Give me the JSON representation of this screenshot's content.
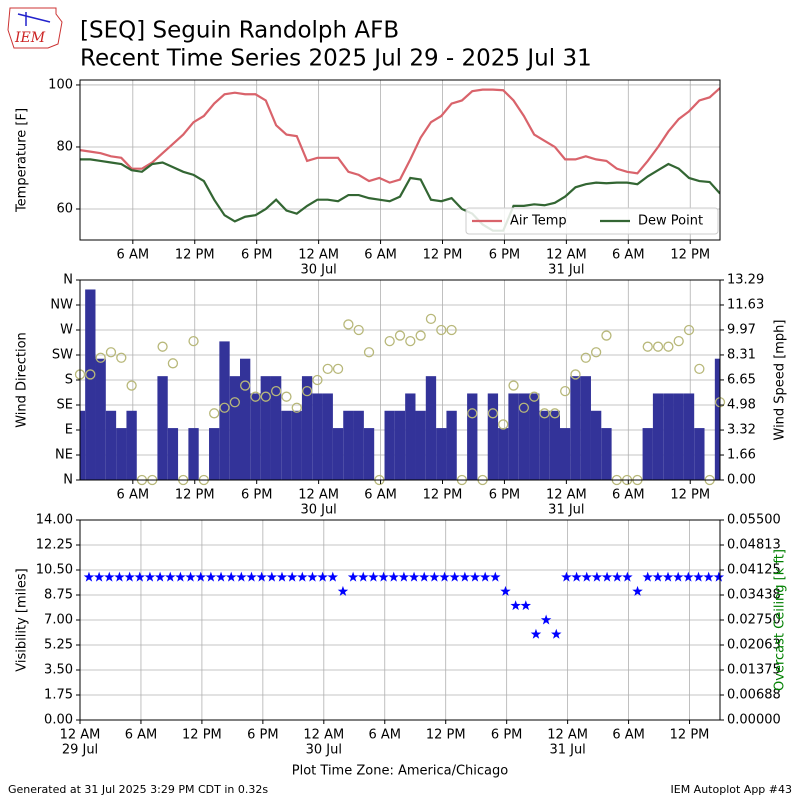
{
  "header": {
    "logo": "IEM",
    "title": "[SEQ] Seguin Randolph AFB",
    "subtitle": "Recent Time Series 2025 Jul 29 - 2025 Jul 31"
  },
  "chart_data": [
    {
      "type": "line",
      "ylabel": "Temperature [F]",
      "grid": true,
      "legend": "lower right",
      "xlim": [
        "2025-07-29T00:53",
        "2025-07-31T14:53"
      ],
      "ylim": [
        50,
        101.6
      ],
      "yticks": [
        60,
        80,
        100
      ],
      "xticks": [
        {
          "value": "2025-07-29T06:00",
          "label": "6 AM"
        },
        {
          "value": "2025-07-29T12:00",
          "label": "12 PM"
        },
        {
          "value": "2025-07-29T18:00",
          "label": "6 PM"
        },
        {
          "value": "2025-07-30T00:00",
          "label": "12 AM"
        },
        {
          "value": "2025-07-30T06:00",
          "label": "6 AM"
        },
        {
          "value": "2025-07-30T12:00",
          "label": "12 PM"
        },
        {
          "value": "2025-07-30T18:00",
          "label": "6 PM"
        },
        {
          "value": "2025-07-31T00:00",
          "label": "12 AM"
        },
        {
          "value": "2025-07-31T06:00",
          "label": "6 AM"
        },
        {
          "value": "2025-07-31T12:00",
          "label": "12 PM"
        }
      ],
      "xdate_labels": [
        {
          "value": "2025-07-30T00:00",
          "label": "30 Jul"
        },
        {
          "value": "2025-07-31T00:00",
          "label": "31 Jul"
        }
      ],
      "x": [
        "2025-07-29T00:53",
        "2025-07-29T01:53",
        "2025-07-29T02:53",
        "2025-07-29T03:53",
        "2025-07-29T04:53",
        "2025-07-29T05:53",
        "2025-07-29T06:53",
        "2025-07-29T07:53",
        "2025-07-29T08:53",
        "2025-07-29T09:53",
        "2025-07-29T10:53",
        "2025-07-29T11:53",
        "2025-07-29T12:53",
        "2025-07-29T13:53",
        "2025-07-29T14:53",
        "2025-07-29T15:53",
        "2025-07-29T16:53",
        "2025-07-29T17:53",
        "2025-07-29T18:53",
        "2025-07-29T19:53",
        "2025-07-29T20:53",
        "2025-07-29T21:53",
        "2025-07-29T22:53",
        "2025-07-29T23:53",
        "2025-07-30T00:53",
        "2025-07-30T01:53",
        "2025-07-30T02:53",
        "2025-07-30T03:53",
        "2025-07-30T04:53",
        "2025-07-30T05:53",
        "2025-07-30T06:53",
        "2025-07-30T07:53",
        "2025-07-30T08:53",
        "2025-07-30T09:53",
        "2025-07-30T10:53",
        "2025-07-30T11:53",
        "2025-07-30T12:53",
        "2025-07-30T13:53",
        "2025-07-30T14:53",
        "2025-07-30T15:53",
        "2025-07-30T16:53",
        "2025-07-30T17:53",
        "2025-07-30T18:53",
        "2025-07-30T19:53",
        "2025-07-30T20:53",
        "2025-07-30T21:53",
        "2025-07-30T22:53",
        "2025-07-30T23:53",
        "2025-07-31T00:53",
        "2025-07-31T01:53",
        "2025-07-31T02:53",
        "2025-07-31T03:53",
        "2025-07-31T04:53",
        "2025-07-31T05:53",
        "2025-07-31T06:53",
        "2025-07-31T07:53",
        "2025-07-31T08:53",
        "2025-07-31T09:53",
        "2025-07-31T10:53",
        "2025-07-31T11:53",
        "2025-07-31T12:53",
        "2025-07-31T13:53",
        "2025-07-31T14:53"
      ],
      "series": [
        {
          "name": "Air Temp",
          "kind": "line",
          "color": "#d9636b",
          "values": [
            79,
            78.5,
            78,
            77,
            76.5,
            73,
            73,
            75,
            78,
            81,
            84,
            88,
            90,
            94,
            97,
            97.5,
            97,
            97,
            95,
            87,
            84,
            83.5,
            75.5,
            76.5,
            76.5,
            76.5,
            72,
            71,
            69,
            70,
            68.5,
            69.5,
            76,
            83,
            88,
            90,
            94,
            95,
            98,
            98.5,
            98.5,
            98.3,
            95,
            90,
            84,
            82,
            80,
            76,
            76,
            77,
            76,
            75.5,
            73,
            72,
            71.5,
            75.5,
            80,
            85,
            89,
            91.5,
            95,
            96,
            99
          ]
        },
        {
          "name": "Dew Point",
          "kind": "line",
          "color": "#336633",
          "values": [
            76,
            76,
            75.5,
            75,
            74.5,
            72.5,
            72,
            74.5,
            75,
            73.5,
            72,
            71,
            69,
            63,
            58,
            56,
            57.5,
            58,
            60,
            63,
            59.5,
            58.5,
            61,
            63,
            63,
            62.5,
            64.5,
            64.5,
            63.5,
            63,
            62.5,
            64,
            70,
            69.5,
            63,
            62.5,
            63.5,
            60,
            58.5,
            55,
            53,
            53,
            61,
            61,
            61.5,
            61.2,
            62,
            64,
            67,
            68,
            68.5,
            68.3,
            68.5,
            68.5,
            68,
            70.5,
            72.5,
            74.5,
            73,
            70,
            69,
            68.7,
            65
          ]
        }
      ]
    },
    {
      "type": "combo",
      "ylabel": "Wind Direction",
      "y2label": "Wind Speed [mph]",
      "grid": true,
      "xlim": [
        "2025-07-29T00:53",
        "2025-07-31T14:53"
      ],
      "ylim": [
        0,
        360
      ],
      "yticks": [
        {
          "value": 0,
          "label": "N"
        },
        {
          "value": 45,
          "label": "NE"
        },
        {
          "value": 90,
          "label": "E"
        },
        {
          "value": 135,
          "label": "SE"
        },
        {
          "value": 180,
          "label": "S"
        },
        {
          "value": 225,
          "label": "SW"
        },
        {
          "value": 270,
          "label": "W"
        },
        {
          "value": 315,
          "label": "NW"
        },
        {
          "value": 360,
          "label": "N"
        }
      ],
      "y2lim": [
        0,
        13.29
      ],
      "y2ticks": [
        {
          "value": 0,
          "label": "0.00"
        },
        1.66,
        3.32,
        4.98,
        6.65,
        8.31,
        9.97,
        11.63,
        13.29
      ],
      "xticks": [
        {
          "value": "2025-07-29T06:00",
          "label": "6 AM"
        },
        {
          "value": "2025-07-29T12:00",
          "label": "12 PM"
        },
        {
          "value": "2025-07-29T18:00",
          "label": "6 PM"
        },
        {
          "value": "2025-07-30T00:00",
          "label": "12 AM"
        },
        {
          "value": "2025-07-30T06:00",
          "label": "6 AM"
        },
        {
          "value": "2025-07-30T12:00",
          "label": "12 PM"
        },
        {
          "value": "2025-07-30T18:00",
          "label": "6 PM"
        },
        {
          "value": "2025-07-31T00:00",
          "label": "12 AM"
        },
        {
          "value": "2025-07-31T06:00",
          "label": "6 AM"
        },
        {
          "value": "2025-07-31T12:00",
          "label": "12 PM"
        }
      ],
      "xdate_labels": [
        {
          "value": "2025-07-30T00:00",
          "label": "30 Jul"
        },
        {
          "value": "2025-07-31T00:00",
          "label": "31 Jul"
        }
      ],
      "x": [
        "2025-07-29T00:53",
        "2025-07-29T01:53",
        "2025-07-29T02:53",
        "2025-07-29T03:53",
        "2025-07-29T04:53",
        "2025-07-29T05:53",
        "2025-07-29T06:53",
        "2025-07-29T07:53",
        "2025-07-29T08:53",
        "2025-07-29T09:53",
        "2025-07-29T10:53",
        "2025-07-29T11:53",
        "2025-07-29T12:53",
        "2025-07-29T13:53",
        "2025-07-29T14:53",
        "2025-07-29T15:53",
        "2025-07-29T16:53",
        "2025-07-29T17:53",
        "2025-07-29T18:53",
        "2025-07-29T19:53",
        "2025-07-29T20:53",
        "2025-07-29T21:53",
        "2025-07-29T22:53",
        "2025-07-29T23:53",
        "2025-07-30T00:53",
        "2025-07-30T01:53",
        "2025-07-30T02:53",
        "2025-07-30T03:53",
        "2025-07-30T04:53",
        "2025-07-30T05:53",
        "2025-07-30T06:53",
        "2025-07-30T07:53",
        "2025-07-30T08:53",
        "2025-07-30T09:53",
        "2025-07-30T10:53",
        "2025-07-30T11:53",
        "2025-07-30T12:53",
        "2025-07-30T13:53",
        "2025-07-30T14:53",
        "2025-07-30T15:53",
        "2025-07-30T16:53",
        "2025-07-30T17:53",
        "2025-07-30T18:53",
        "2025-07-30T19:53",
        "2025-07-30T20:53",
        "2025-07-30T21:53",
        "2025-07-30T22:53",
        "2025-07-30T23:53",
        "2025-07-31T00:53",
        "2025-07-31T01:53",
        "2025-07-31T02:53",
        "2025-07-31T03:53",
        "2025-07-31T04:53",
        "2025-07-31T05:53",
        "2025-07-31T06:53",
        "2025-07-31T07:53",
        "2025-07-31T08:53",
        "2025-07-31T09:53",
        "2025-07-31T10:53",
        "2025-07-31T11:53",
        "2025-07-31T12:53",
        "2025-07-31T13:53",
        "2025-07-31T14:53"
      ],
      "series": [
        {
          "kind": "bar",
          "axis": "y2",
          "color": "#333399",
          "values": [
            4.6,
            12.66,
            8.06,
            4.6,
            3.45,
            4.6,
            0,
            0,
            6.9,
            3.45,
            0,
            3.45,
            0,
            3.45,
            9.21,
            6.9,
            8.06,
            5.75,
            6.9,
            6.9,
            4.6,
            4.6,
            6.9,
            5.75,
            5.75,
            3.45,
            4.6,
            4.6,
            3.45,
            0,
            4.6,
            4.6,
            5.75,
            4.6,
            6.9,
            3.45,
            4.6,
            0,
            5.75,
            0,
            5.75,
            3.45,
            5.75,
            5.75,
            5.75,
            4.6,
            4.6,
            3.45,
            6.9,
            6.9,
            4.6,
            3.45,
            0,
            0,
            0,
            3.45,
            5.75,
            5.75,
            5.75,
            5.75,
            3.45,
            0,
            8.06
          ]
        },
        {
          "kind": "scatter",
          "marker": "circle",
          "color": "#b8b87a",
          "values": [
            190,
            190,
            220,
            230,
            220,
            170,
            0,
            0,
            240,
            210,
            0,
            250,
            0,
            120,
            130,
            140,
            170,
            150,
            150,
            160,
            150,
            130,
            160,
            180,
            200,
            200,
            280,
            270,
            230,
            0,
            250,
            260,
            250,
            260,
            290,
            270,
            270,
            0,
            120,
            0,
            120,
            100,
            170,
            130,
            150,
            120,
            120,
            160,
            190,
            220,
            230,
            260,
            0,
            0,
            0,
            240,
            240,
            240,
            250,
            270,
            200,
            0,
            140
          ]
        }
      ]
    },
    {
      "type": "scatter",
      "ylabel": "Visibility [miles]",
      "y2label": "Overcast Ceiling [k ft]",
      "y2label_color": "#008000",
      "grid": true,
      "xlabel": "Plot Time Zone: America/Chicago",
      "xlim": [
        "2025-07-29T00:00",
        "2025-07-31T15:00"
      ],
      "ylim": [
        0,
        14
      ],
      "yticks": [
        {
          "value": 0,
          "label": "0.00"
        },
        1.75,
        {
          "value": 3.5,
          "label": "3.50"
        },
        5.25,
        {
          "value": 7,
          "label": "7.00"
        },
        8.75,
        {
          "value": 10.5,
          "label": "10.50"
        },
        12.25,
        {
          "value": 14,
          "label": "14.00"
        }
      ],
      "y2lim": [
        0,
        0.055
      ],
      "y2ticks": [
        {
          "value": 0,
          "label": "0.00000"
        },
        {
          "value": 0.006875,
          "label": "0.00688"
        },
        {
          "value": 0.01375,
          "label": "0.01375"
        },
        {
          "value": 0.020625,
          "label": "0.02063"
        },
        {
          "value": 0.0275,
          "label": "0.02750"
        },
        {
          "value": 0.034375,
          "label": "0.03438"
        },
        {
          "value": 0.04125,
          "label": "0.04125"
        },
        {
          "value": 0.048125,
          "label": "0.04813"
        },
        {
          "value": 0.055,
          "label": "0.05500"
        }
      ],
      "xticks": [
        {
          "value": "2025-07-29T00:00",
          "label": "12 AM"
        },
        {
          "value": "2025-07-29T06:00",
          "label": "6 AM"
        },
        {
          "value": "2025-07-29T12:00",
          "label": "12 PM"
        },
        {
          "value": "2025-07-29T18:00",
          "label": "6 PM"
        },
        {
          "value": "2025-07-30T00:00",
          "label": "12 AM"
        },
        {
          "value": "2025-07-30T06:00",
          "label": "6 AM"
        },
        {
          "value": "2025-07-30T12:00",
          "label": "12 PM"
        },
        {
          "value": "2025-07-30T18:00",
          "label": "6 PM"
        },
        {
          "value": "2025-07-31T00:00",
          "label": "12 AM"
        },
        {
          "value": "2025-07-31T06:00",
          "label": "6 AM"
        },
        {
          "value": "2025-07-31T12:00",
          "label": "12 PM"
        }
      ],
      "xdate_labels": [
        {
          "value": "2025-07-29T00:00",
          "label": "29 Jul"
        },
        {
          "value": "2025-07-30T00:00",
          "label": "30 Jul"
        },
        {
          "value": "2025-07-31T00:00",
          "label": "31 Jul"
        }
      ],
      "x": [
        "2025-07-29T00:53",
        "2025-07-29T01:53",
        "2025-07-29T02:53",
        "2025-07-29T03:53",
        "2025-07-29T04:53",
        "2025-07-29T05:53",
        "2025-07-29T06:53",
        "2025-07-29T07:53",
        "2025-07-29T08:53",
        "2025-07-29T09:53",
        "2025-07-29T10:53",
        "2025-07-29T11:53",
        "2025-07-29T12:53",
        "2025-07-29T13:53",
        "2025-07-29T14:53",
        "2025-07-29T15:53",
        "2025-07-29T16:53",
        "2025-07-29T17:53",
        "2025-07-29T18:53",
        "2025-07-29T19:53",
        "2025-07-29T20:53",
        "2025-07-29T21:53",
        "2025-07-29T22:53",
        "2025-07-29T23:53",
        "2025-07-30T00:53",
        "2025-07-30T01:53",
        "2025-07-30T02:53",
        "2025-07-30T03:53",
        "2025-07-30T04:53",
        "2025-07-30T05:53",
        "2025-07-30T06:53",
        "2025-07-30T07:53",
        "2025-07-30T08:53",
        "2025-07-30T09:53",
        "2025-07-30T10:53",
        "2025-07-30T11:53",
        "2025-07-30T12:53",
        "2025-07-30T13:53",
        "2025-07-30T14:53",
        "2025-07-30T15:53",
        "2025-07-30T16:53",
        "2025-07-30T17:53",
        "2025-07-30T18:53",
        "2025-07-30T19:53",
        "2025-07-30T20:53",
        "2025-07-30T21:53",
        "2025-07-30T22:53",
        "2025-07-30T23:53",
        "2025-07-31T00:53",
        "2025-07-31T01:53",
        "2025-07-31T02:53",
        "2025-07-31T03:53",
        "2025-07-31T04:53",
        "2025-07-31T05:53",
        "2025-07-31T06:53",
        "2025-07-31T07:53",
        "2025-07-31T08:53",
        "2025-07-31T09:53",
        "2025-07-31T10:53",
        "2025-07-31T11:53",
        "2025-07-31T12:53",
        "2025-07-31T13:53",
        "2025-07-31T14:53"
      ],
      "series": [
        {
          "kind": "scatter",
          "marker": "star",
          "color": "#0000ff",
          "values": [
            10,
            10,
            10,
            10,
            10,
            10,
            10,
            10,
            10,
            10,
            10,
            10,
            10,
            10,
            10,
            10,
            10,
            10,
            10,
            10,
            10,
            10,
            10,
            10,
            10,
            9,
            10,
            10,
            10,
            10,
            10,
            10,
            10,
            10,
            10,
            10,
            10,
            10,
            10,
            10,
            10,
            9,
            8,
            8,
            6,
            7,
            6,
            10,
            10,
            10,
            10,
            10,
            10,
            10,
            9,
            10,
            10,
            10,
            10,
            10,
            10,
            10,
            10
          ]
        }
      ]
    }
  ],
  "footer": {
    "left": "Generated at 31 Jul 2025 3:29 PM CDT in 0.32s",
    "right": "IEM Autoplot App #43"
  }
}
